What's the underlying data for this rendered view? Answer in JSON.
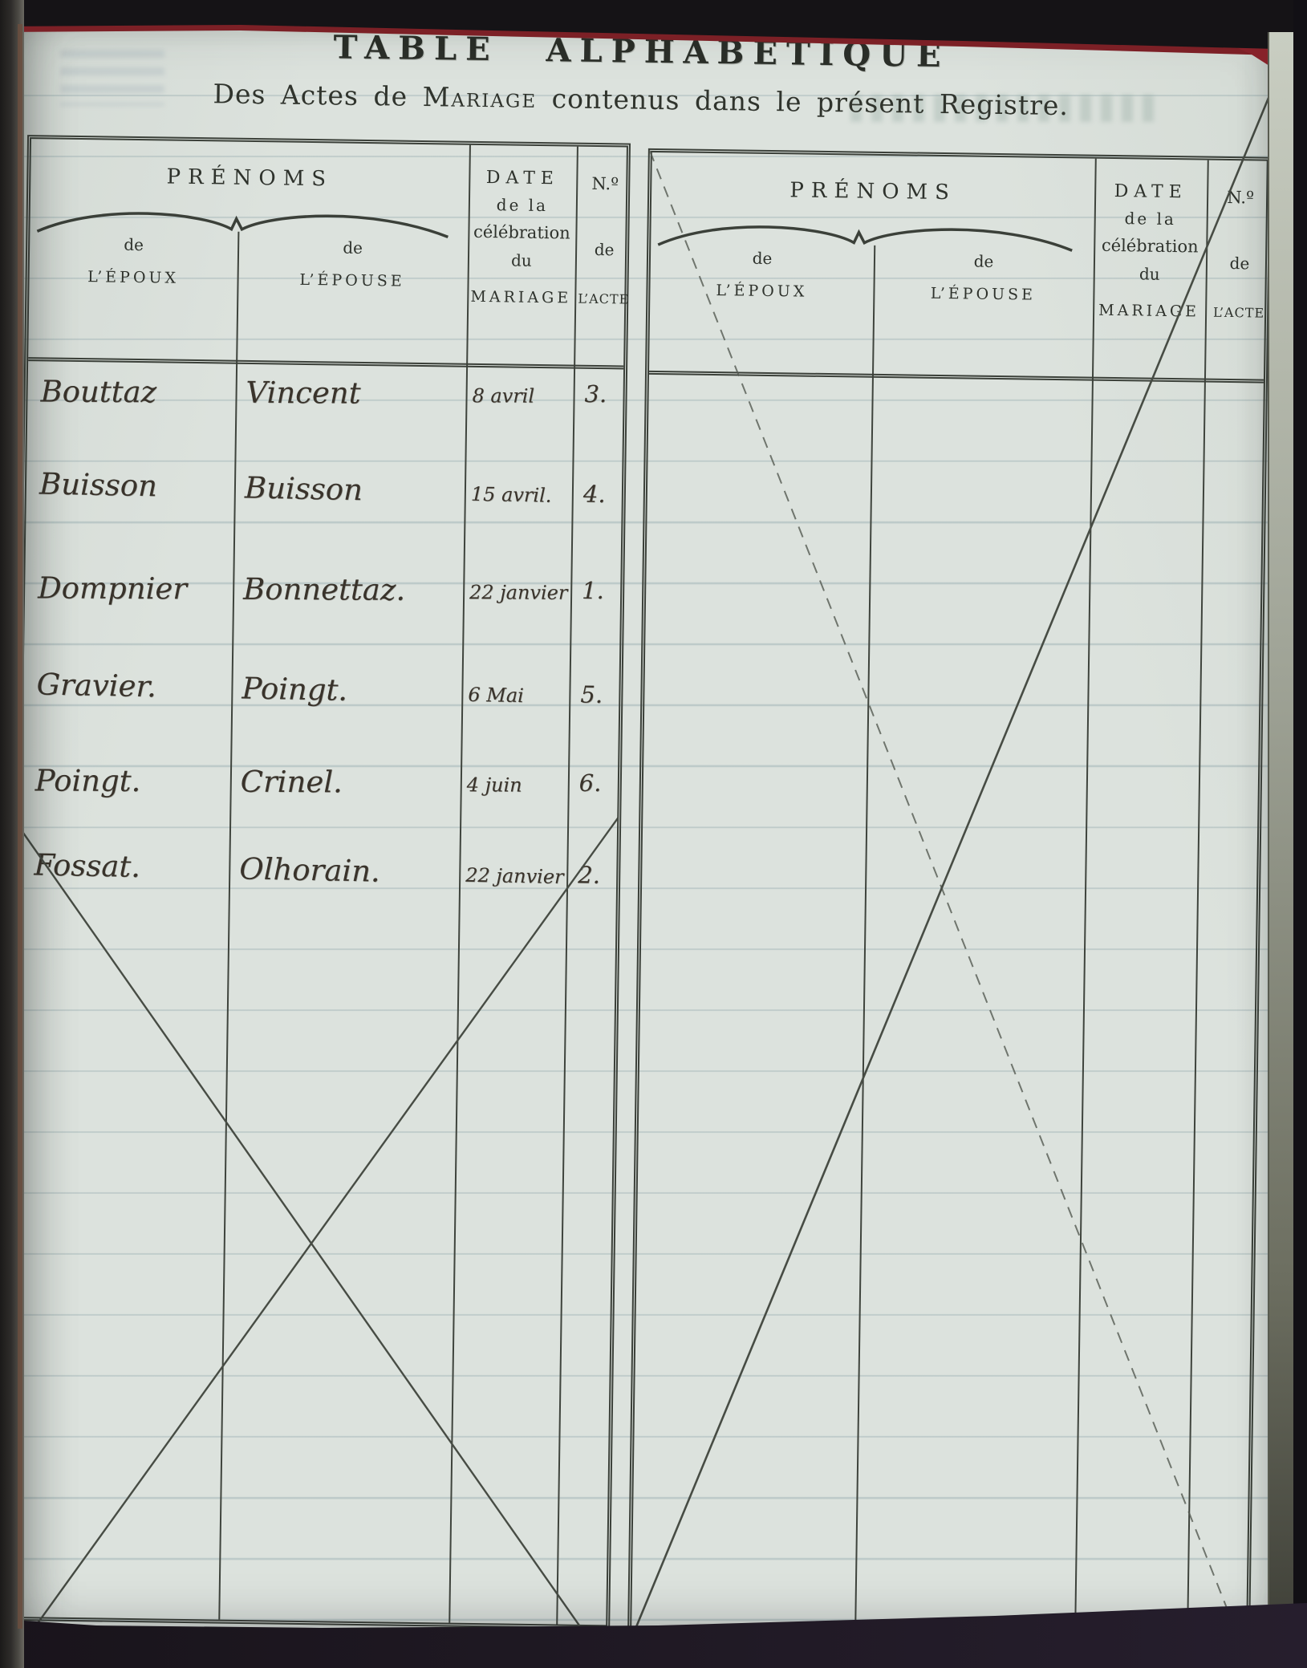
{
  "page": {
    "title": "TABLE ALPHABÉTIQUE",
    "subtitle_parts": {
      "pre": "Des Actes de ",
      "emph": "Mariage",
      "post": " contenus dans le présent Registre."
    }
  },
  "header_labels": {
    "prenoms": "PRÉNOMS",
    "de": "de",
    "epoux": "L’ÉPOUX",
    "epouse": "L’ÉPOUSE",
    "date_line1": "DATE",
    "date_line2": "de la",
    "date_line3": "célébration",
    "date_line4": "du",
    "date_line5": "MARIAGE",
    "no_line1": "N.º",
    "no_line2": "de",
    "no_line3": "L’ACTE"
  },
  "left_table": {
    "rows": [
      {
        "epoux": "Bouttaz",
        "epouse": "Vincent",
        "date": "8 avril",
        "acte": "3."
      },
      {
        "epoux": "Buisson",
        "epouse": "Buisson",
        "date": "15 avril.",
        "acte": "4."
      },
      {
        "epoux": "Dompnier",
        "epouse": "Bonnettaz.",
        "date": "22 janvier",
        "acte": "1."
      },
      {
        "epoux": "Gravier.",
        "epouse": "Poingt.",
        "date": "6 Mai",
        "acte": "5."
      },
      {
        "epoux": "Poingt.",
        "epouse": "Crinel.",
        "date": "4 juin",
        "acte": "6."
      },
      {
        "epoux": "Fossat.",
        "epouse": "Olhorain.",
        "date": "22 janvier",
        "acte": "2."
      }
    ]
  },
  "right_table": {
    "rows": [],
    "crossed_out": true
  },
  "colors": {
    "paper": "#dce2dd",
    "printed_ink": "#2e322c",
    "handwriting_ink": "#39332b",
    "table_border": "#3b4039",
    "book_edge_dark": "#151316",
    "book_edge_red": "#7c2026"
  }
}
